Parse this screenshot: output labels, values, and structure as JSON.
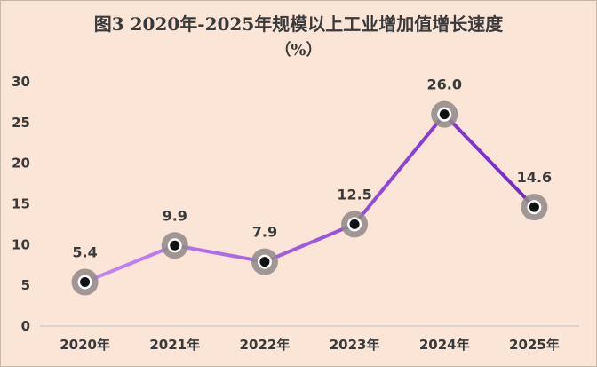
{
  "chart_data": {
    "type": "line",
    "title": "图3     2020年-2025年规模以上工业增加值增长速度",
    "subtitle": "（%）",
    "categories": [
      "2020年",
      "2021年",
      "2022年",
      "2023年",
      "2024年",
      "2025年"
    ],
    "series": [
      {
        "values": [
          5.4,
          9.9,
          7.9,
          12.5,
          26.0,
          14.6
        ]
      }
    ],
    "data_labels": [
      "5.4",
      "9.9",
      "7.9",
      "12.5",
      "26.0",
      "14.6"
    ],
    "y_ticks": [
      "0",
      "5",
      "10",
      "15",
      "20",
      "25",
      "30"
    ],
    "ylim": [
      0,
      30
    ],
    "grid": false,
    "legend": "none",
    "colors": {
      "background": "#fbe5d6",
      "line_start": "#c58af5",
      "line_end": "#7427c9",
      "marker_halo": "#8f8a88",
      "marker_ring": "#ffffff",
      "marker_core": "#111111",
      "text": "#3a3a3a",
      "axis": "#bfbfbf"
    }
  }
}
